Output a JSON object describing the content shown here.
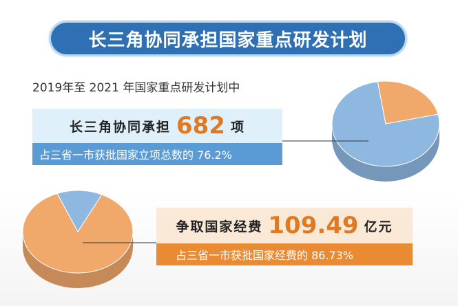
{
  "header": {
    "title": "长三角协同承担国家重点研发计划",
    "subtitle": "2019年至 2021 年国家重点研发计划中"
  },
  "projects": {
    "label": "长三角协同承担",
    "value": "682",
    "unit": "项",
    "share_text": "占三省一市获批国家立项总数的 76.2%"
  },
  "funding": {
    "label": "争取国家经费",
    "value": "109.49",
    "unit": "亿元",
    "share_text": "占三省一市获批国家经费的 86.73%"
  },
  "colors": {
    "title_bg": "#2f6fb3",
    "blue_slice": "#8fb8e1",
    "orange_slice": "#f0a86b",
    "accent_number": "#e07a22"
  },
  "chart_data": [
    {
      "type": "pie",
      "slices": [
        {
          "name": "长三角协同承担",
          "value": 76.2
        },
        {
          "name": "",
          "value": 23.8
        }
      ]
    },
    {
      "type": "pie",
      "slices": [
        {
          "name": "争取国家经费",
          "value": 86.73
        },
        {
          "name": "",
          "value": 13.27
        }
      ]
    }
  ]
}
